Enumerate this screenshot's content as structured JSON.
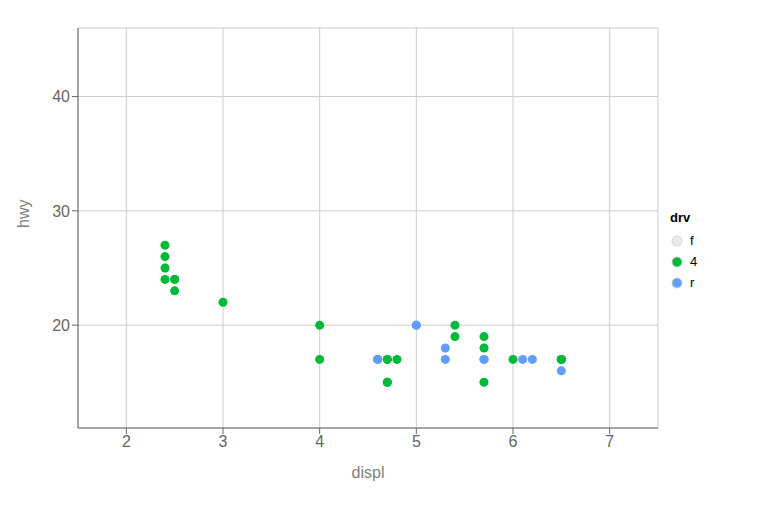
{
  "chart_data": {
    "type": "scatter",
    "xlabel": "displ",
    "ylabel": "hwy",
    "legend_title": "drv",
    "legend": "right",
    "grid": true,
    "xlim": [
      1.5,
      7.5
    ],
    "ylim": [
      11,
      46
    ],
    "xticks": [
      2,
      3,
      4,
      5,
      6,
      7
    ],
    "yticks": [
      20,
      30,
      40
    ],
    "series": [
      {
        "name": "f",
        "color": "#EBEBEB",
        "x": [],
        "values": []
      },
      {
        "name": "4",
        "color": "#00BA38",
        "x": [
          2.4,
          2.4,
          2.4,
          2.4,
          2.5,
          2.5,
          2.5,
          3.0,
          4.0,
          4.0,
          4.6,
          4.7,
          4.7,
          4.7,
          4.7,
          4.8,
          5.4,
          5.4,
          5.7,
          5.7,
          5.7,
          6.0,
          6.5,
          6.5,
          6.5
        ],
        "values": [
          27,
          26,
          25,
          24,
          23,
          24,
          24,
          22,
          20,
          17,
          17,
          17,
          17,
          15,
          15,
          17,
          20,
          19,
          19,
          18,
          15,
          17,
          17,
          17,
          17
        ]
      },
      {
        "name": "r",
        "color": "#619CFF",
        "x": [
          4.6,
          5.0,
          5.0,
          5.3,
          5.3,
          5.7,
          5.7,
          6.1,
          6.2,
          6.5
        ],
        "values": [
          17,
          20,
          20,
          18,
          17,
          17,
          17,
          17,
          17,
          16
        ]
      }
    ]
  }
}
